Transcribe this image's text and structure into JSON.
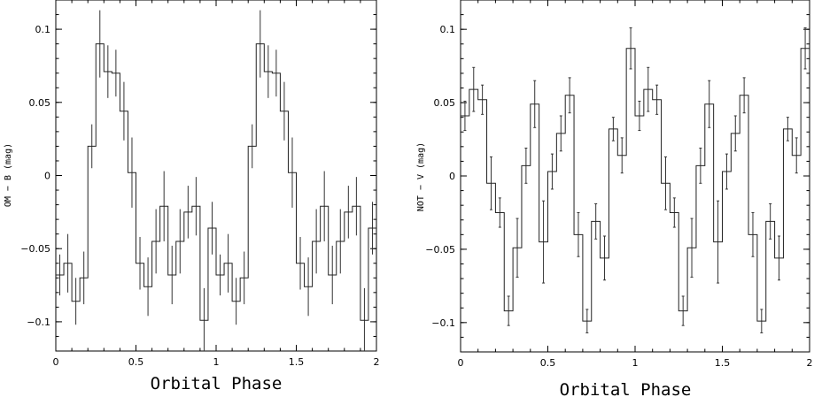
{
  "chart_data": [
    {
      "type": "line",
      "step": "post",
      "xlabel": "Orbital Phase",
      "ylabel": "OM − B (mag)",
      "xlim": [
        0,
        2
      ],
      "ylim": [
        -0.12,
        0.12
      ],
      "xticks": [
        0,
        0.5,
        1,
        1.5,
        2
      ],
      "xtick_labels": [
        "0",
        "0.5",
        "1",
        "1.5",
        "2"
      ],
      "yticks": [
        -0.1,
        -0.05,
        0,
        0.05,
        0.1
      ],
      "ytick_labels": [
        "−0.1",
        "−0.05",
        "0",
        "0.05",
        "0.1"
      ],
      "bin_width": 0.05,
      "series": [
        {
          "x": [
            0.0,
            0.05,
            0.1,
            0.15,
            0.2,
            0.25,
            0.3,
            0.35,
            0.4,
            0.45,
            0.5,
            0.55,
            0.6,
            0.65,
            0.7,
            0.75,
            0.8,
            0.85,
            0.9,
            0.95,
            1.0,
            1.05,
            1.1,
            1.15,
            1.2,
            1.25,
            1.3,
            1.35,
            1.4,
            1.45,
            1.5,
            1.55,
            1.6,
            1.65,
            1.7,
            1.75,
            1.8,
            1.85,
            1.9,
            1.95
          ],
          "y": [
            -0.068,
            -0.06,
            -0.086,
            -0.07,
            0.02,
            0.09,
            0.071,
            0.07,
            0.044,
            0.002,
            -0.06,
            -0.076,
            -0.045,
            -0.021,
            -0.068,
            -0.045,
            -0.025,
            -0.021,
            -0.099,
            -0.036,
            -0.068,
            -0.06,
            -0.086,
            -0.07,
            0.02,
            0.09,
            0.071,
            0.07,
            0.044,
            0.002,
            -0.06,
            -0.076,
            -0.045,
            -0.021,
            -0.068,
            -0.045,
            -0.025,
            -0.021,
            -0.099,
            -0.036
          ],
          "err": [
            0.014,
            0.02,
            0.016,
            0.018,
            0.015,
            0.023,
            0.018,
            0.016,
            0.02,
            0.024,
            0.018,
            0.02,
            0.022,
            0.024,
            0.02,
            0.022,
            0.018,
            0.02,
            0.022,
            0.018,
            0.014,
            0.02,
            0.016,
            0.018,
            0.015,
            0.023,
            0.018,
            0.016,
            0.02,
            0.024,
            0.018,
            0.02,
            0.022,
            0.024,
            0.02,
            0.022,
            0.018,
            0.02,
            0.022,
            0.018
          ]
        }
      ]
    },
    {
      "type": "line",
      "step": "post",
      "xlabel": "Orbital Phase",
      "ylabel": "NOT − V (mag)",
      "xlim": [
        0,
        2
      ],
      "ylim": [
        -0.12,
        0.12
      ],
      "xticks": [
        0,
        0.5,
        1,
        1.5,
        2
      ],
      "xtick_labels": [
        "0",
        "0.5",
        "1",
        "1.5",
        "2"
      ],
      "yticks": [
        -0.1,
        -0.05,
        0,
        0.05,
        0.1
      ],
      "ytick_labels": [
        "−0.1",
        "−0.05",
        "0",
        "0.05",
        "0.1"
      ],
      "bin_width": 0.05,
      "series": [
        {
          "x": [
            0.0,
            0.05,
            0.1,
            0.15,
            0.2,
            0.25,
            0.3,
            0.35,
            0.4,
            0.45,
            0.5,
            0.55,
            0.6,
            0.65,
            0.7,
            0.75,
            0.8,
            0.85,
            0.9,
            0.95,
            1.0,
            1.05,
            1.1,
            1.15,
            1.2,
            1.25,
            1.3,
            1.35,
            1.4,
            1.45,
            1.5,
            1.55,
            1.6,
            1.65,
            1.7,
            1.75,
            1.8,
            1.85,
            1.9,
            1.95
          ],
          "y": [
            0.041,
            0.059,
            0.052,
            -0.005,
            -0.025,
            -0.092,
            -0.049,
            0.007,
            0.049,
            -0.045,
            0.003,
            0.029,
            0.055,
            -0.04,
            -0.099,
            -0.031,
            -0.056,
            0.032,
            0.014,
            0.087,
            0.041,
            0.059,
            0.052,
            -0.005,
            -0.025,
            -0.092,
            -0.049,
            0.007,
            0.049,
            -0.045,
            0.003,
            0.029,
            0.055,
            -0.04,
            -0.099,
            -0.031,
            -0.056,
            0.032,
            0.014,
            0.087
          ],
          "err": [
            0.01,
            0.015,
            0.01,
            0.018,
            0.01,
            0.01,
            0.02,
            0.012,
            0.016,
            0.028,
            0.012,
            0.012,
            0.012,
            0.015,
            0.008,
            0.012,
            0.015,
            0.008,
            0.012,
            0.014,
            0.01,
            0.015,
            0.01,
            0.018,
            0.01,
            0.01,
            0.02,
            0.012,
            0.016,
            0.028,
            0.012,
            0.012,
            0.012,
            0.015,
            0.008,
            0.012,
            0.015,
            0.008,
            0.012,
            0.014
          ]
        }
      ]
    }
  ]
}
